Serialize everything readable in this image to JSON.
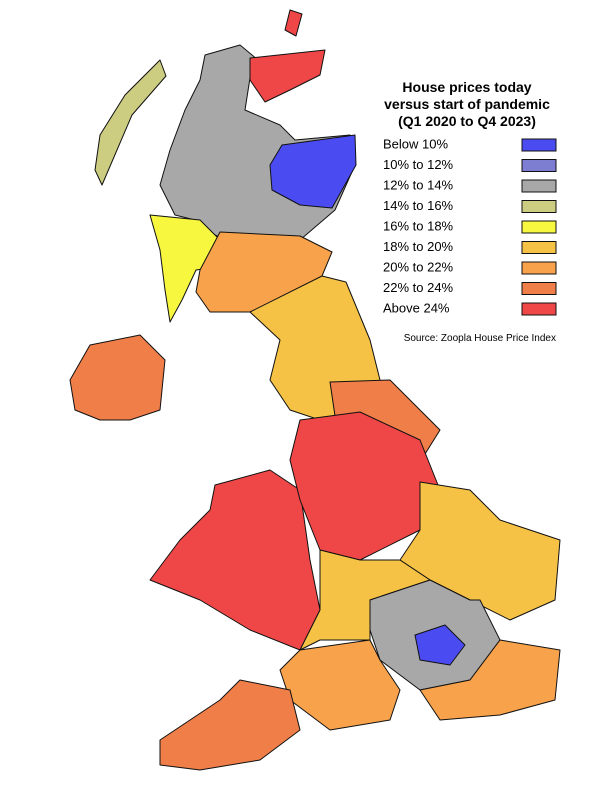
{
  "title": [
    "House prices today",
    "versus start of pandemic",
    "(Q1 2020 to Q4 2023)"
  ],
  "legend": [
    {
      "label": "Below 10%",
      "color": "#4b4bf2"
    },
    {
      "label": "10% to 12%",
      "color": "#7d7dd2"
    },
    {
      "label": "12% to 14%",
      "color": "#a8a8a8"
    },
    {
      "label": "14% to 16%",
      "color": "#cdcd82"
    },
    {
      "label": "16% to 18%",
      "color": "#f7f740"
    },
    {
      "label": "18% to 20%",
      "color": "#f6c246"
    },
    {
      "label": "20% to 22%",
      "color": "#f8a24b"
    },
    {
      "label": "22% to 24%",
      "color": "#f07e48"
    },
    {
      "label": "Above 24%",
      "color": "#ef4747"
    }
  ],
  "source": "Source: Zoopla House Price Index"
}
